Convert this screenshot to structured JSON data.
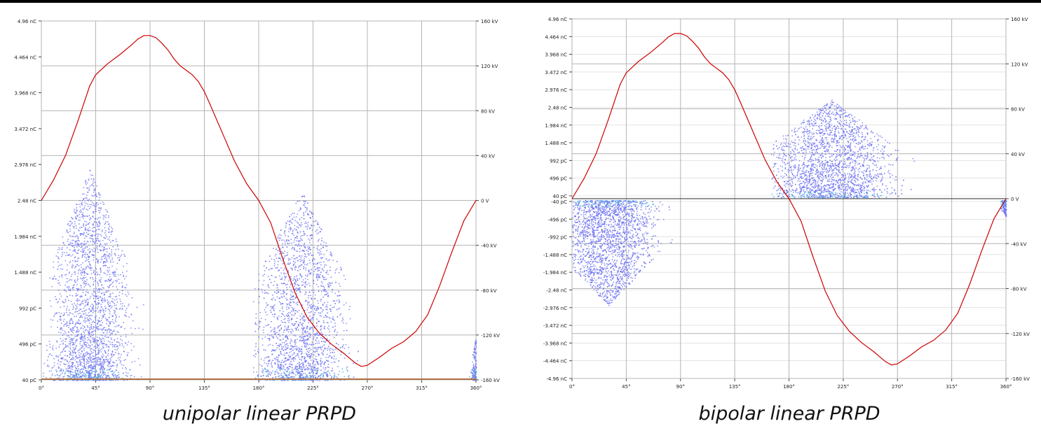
{
  "captions": {
    "left": "unipolar linear PRPD",
    "right": "bipolar linear PRPD"
  },
  "colors": {
    "background": "#ffffff",
    "grid": "#b4b4b4",
    "voltage_curve": "#cc0000",
    "pd_points": "#6f74f2",
    "pd_points_dense": "#4fa8e0",
    "zero_line": "#555555",
    "baseline_unipolar": "#b07040"
  },
  "chart_data": [
    {
      "type": "scatter",
      "title": "unipolar linear PRPD",
      "x": {
        "label": "",
        "range": [
          0,
          360
        ],
        "tick_labels": [
          "0°",
          "45°",
          "90°",
          "135°",
          "180°",
          "225°",
          "270°",
          "315°",
          "360°"
        ]
      },
      "y_left": {
        "label": "",
        "range": [
          40,
          4960
        ],
        "unit": "pC",
        "tick_labels": [
          "4.96 nC",
          "4.464 nC",
          "3.968 nC",
          "3.472 nC",
          "2.976 nC",
          "2.48 nC",
          "1.984 nC",
          "1.488 nC",
          "992 pC",
          "496 pC",
          "40 pC"
        ]
      },
      "y_right": {
        "label": "",
        "range": [
          -160,
          160
        ],
        "unit": "kV",
        "tick_labels": [
          "160 kV",
          "120 kV",
          "80 kV",
          "40 kV",
          "0 V",
          "-40 kV",
          "-80 kV",
          "-120 kV",
          "-160 kV"
        ]
      },
      "grid": true,
      "legend": "none",
      "series": [
        {
          "kind": "line",
          "axis": "right",
          "x": [
            0,
            10,
            20,
            30,
            40,
            45,
            55,
            65,
            75,
            80,
            85,
            90,
            95,
            100,
            105,
            110,
            115,
            120,
            125,
            130,
            135,
            140,
            150,
            160,
            170,
            180,
            190,
            200,
            210,
            220,
            225,
            230,
            240,
            250,
            260,
            265,
            270,
            280,
            290,
            300,
            310,
            320,
            330,
            340,
            350,
            360
          ],
          "y": [
            0,
            18,
            40,
            70,
            102,
            112,
            122,
            130,
            139,
            144,
            147,
            147,
            145,
            140,
            134,
            126,
            120,
            116,
            112,
            106,
            97,
            85,
            60,
            35,
            15,
            0,
            -20,
            -52,
            -82,
            -104,
            -111,
            -118,
            -128,
            -136,
            -145,
            -148,
            -147,
            -140,
            -132,
            -126,
            -117,
            -102,
            -76,
            -46,
            -18,
            0
          ]
        },
        {
          "kind": "scatter_cluster",
          "axis": "left",
          "clusters": [
            {
              "phase_range": [
                0,
                95
              ],
              "center_phase": 40,
              "charge_max": 2900,
              "density": "high"
            },
            {
              "phase_range": [
                175,
                285
              ],
              "center_phase": 215,
              "charge_max": 2600,
              "density": "high"
            },
            {
              "phase_range": [
                348,
                360
              ],
              "center_phase": 360,
              "charge_max": 600,
              "density": "low"
            }
          ]
        }
      ]
    },
    {
      "type": "scatter",
      "title": "bipolar linear PRPD",
      "x": {
        "label": "",
        "range": [
          0,
          360
        ],
        "tick_labels": [
          "0°",
          "45°",
          "90°",
          "135°",
          "180°",
          "225°",
          "270°",
          "315°",
          "360°"
        ]
      },
      "y_left": {
        "label": "",
        "range": [
          -4960,
          4960
        ],
        "unit": "pC",
        "tick_labels": [
          "4.96 nC",
          "4.464 nC",
          "3.968 nC",
          "3.472 nC",
          "2.976 nC",
          "2.48 nC",
          "1.984 nC",
          "1.488 nC",
          "992 pC",
          "496 pC",
          "40 pC",
          "-40 pC",
          "-496 pC",
          "-992 pC",
          "-1.488 nC",
          "-1.984 nC",
          "-2.48 nC",
          "-2.976 nC",
          "-3.472 nC",
          "-3.968 nC",
          "-4.464 nC",
          "-4.96 nC"
        ]
      },
      "y_right": {
        "label": "",
        "range": [
          -160,
          160
        ],
        "unit": "kV",
        "tick_labels": [
          "160 kV",
          "120 kV",
          "80 kV",
          "40 kV",
          "0 V",
          "-40 kV",
          "-80 kV",
          "-120 kV",
          "-160 kV"
        ]
      },
      "grid": true,
      "legend": "none",
      "series": [
        {
          "kind": "line",
          "axis": "right",
          "x": [
            0,
            10,
            20,
            30,
            40,
            45,
            55,
            65,
            75,
            80,
            85,
            90,
            95,
            100,
            105,
            110,
            115,
            120,
            125,
            130,
            135,
            140,
            150,
            160,
            170,
            180,
            190,
            200,
            210,
            220,
            225,
            230,
            240,
            250,
            260,
            265,
            270,
            280,
            290,
            300,
            310,
            320,
            330,
            340,
            350,
            360
          ],
          "y": [
            0,
            18,
            40,
            70,
            102,
            112,
            122,
            130,
            139,
            144,
            147,
            147,
            145,
            140,
            134,
            126,
            120,
            116,
            112,
            106,
            97,
            85,
            60,
            35,
            15,
            0,
            -20,
            -52,
            -82,
            -104,
            -111,
            -118,
            -128,
            -136,
            -145,
            -148,
            -147,
            -140,
            -132,
            -126,
            -117,
            -102,
            -76,
            -46,
            -18,
            0
          ]
        },
        {
          "kind": "scatter_cluster",
          "axis": "left",
          "clusters": [
            {
              "phase_range": [
                0,
                115
              ],
              "center_phase": 30,
              "charge_min": -2900,
              "polarity": "negative",
              "density": "high"
            },
            {
              "phase_range": [
                165,
                315
              ],
              "center_phase": 215,
              "charge_max": 2700,
              "polarity": "positive",
              "density": "high"
            },
            {
              "phase_range": [
                347,
                360
              ],
              "center_phase": 360,
              "charge_min": -450,
              "polarity": "negative",
              "density": "low"
            }
          ]
        }
      ]
    }
  ]
}
